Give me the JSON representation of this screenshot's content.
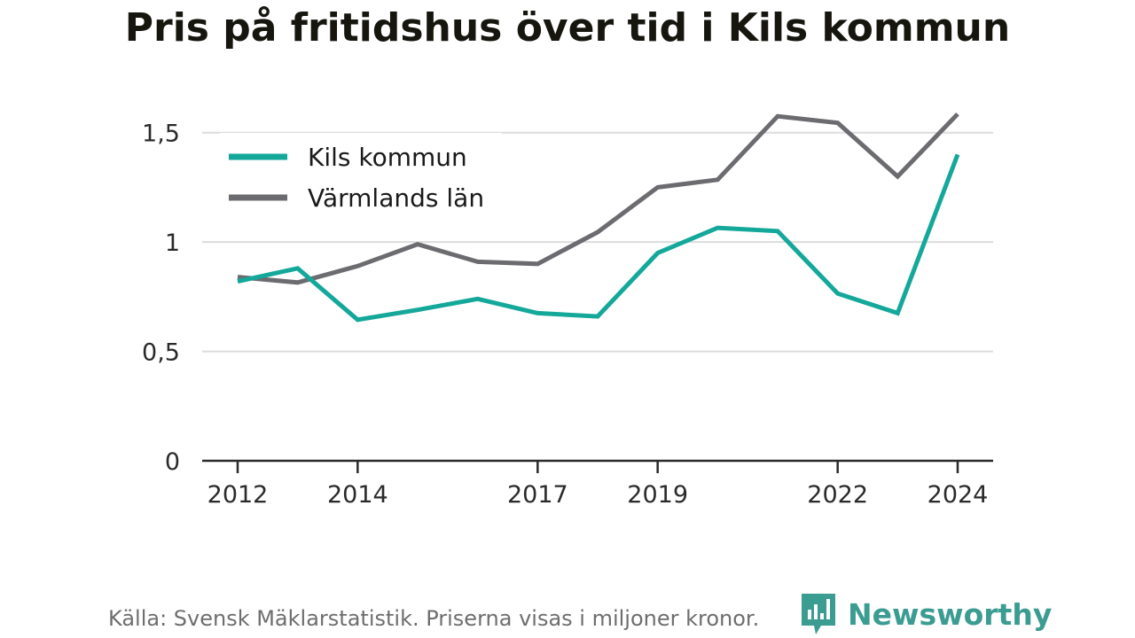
{
  "title": "Pris på fritidshus över tid i Kils kommun",
  "caption": "Källa: Svensk Mäklarstatistik. Priserna visas i miljoner kronor.",
  "brand": {
    "name": "Newsworthy",
    "icon": "chart-bubble-logo-icon",
    "color": "#3b9c91"
  },
  "chart_data": {
    "type": "line",
    "title": "Pris på fritidshus över tid i Kils kommun",
    "xlabel": "",
    "ylabel": "",
    "x": [
      2012,
      2013,
      2014,
      2015,
      2016,
      2017,
      2018,
      2019,
      2020,
      2021,
      2022,
      2023,
      2024
    ],
    "x_tick_values": [
      2012,
      2014,
      2017,
      2019,
      2022,
      2024
    ],
    "x_tick_labels": [
      "2012",
      "2014",
      "2017",
      "2019",
      "2022",
      "2024"
    ],
    "y_tick_values": [
      0,
      0.5,
      1,
      1.5
    ],
    "y_tick_labels": [
      "0",
      "0,5",
      "1",
      "1,5"
    ],
    "ylim": [
      0,
      1.75
    ],
    "grid": true,
    "legend_position": "top-left",
    "series": [
      {
        "name": "Kils kommun",
        "color": "#14a89a",
        "values": [
          0.82,
          0.88,
          0.645,
          0.69,
          0.74,
          0.675,
          0.66,
          0.95,
          1.065,
          1.05,
          0.765,
          0.675,
          1.4
        ]
      },
      {
        "name": "Värmlands län",
        "color": "#6c6b70",
        "values": [
          0.84,
          0.815,
          0.89,
          0.99,
          0.91,
          0.9,
          1.045,
          1.25,
          1.285,
          1.575,
          1.545,
          1.3,
          1.585
        ]
      }
    ]
  }
}
